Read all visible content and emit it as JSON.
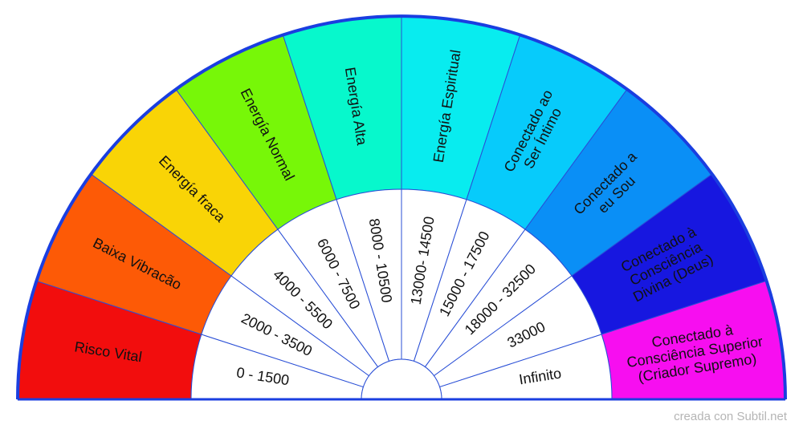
{
  "sectors": [
    {
      "label": [
        "Risco Vital"
      ],
      "range": "0 - 1500",
      "color": "#f20d0d"
    },
    {
      "label": [
        "Baixa Vibracão"
      ],
      "range": "2000 - 3500",
      "color": "#fd5a06"
    },
    {
      "label": [
        "Energía fraca"
      ],
      "range": "4000 - 5500",
      "color": "#f9d406"
    },
    {
      "label": [
        "Energía Normal"
      ],
      "range": "6000 - 7500",
      "color": "#77f708"
    },
    {
      "label": [
        "Energía Alta"
      ],
      "range": "8000 - 10500",
      "color": "#07f8cc"
    },
    {
      "label": [
        "Energía Espiritual"
      ],
      "range": "13000- 14500",
      "color": "#08ecef"
    },
    {
      "label": [
        "Conectado ao",
        "Ser Íntimo"
      ],
      "range": "15000 - 17500",
      "color": "#07cbfb"
    },
    {
      "label": [
        "Conectado a",
        "eu Sou"
      ],
      "range": "18000 - 32500",
      "color": "#0a8ff6"
    },
    {
      "label": [
        "Conectado à",
        "Consciência",
        "Divina (Deus)"
      ],
      "range": "33000",
      "color": "#1717e0"
    },
    {
      "label": [
        "Conectado à",
        "Consciência Superior",
        "(Criador Supremo)"
      ],
      "range": "Infinito",
      "color": "#f70ef0"
    }
  ],
  "footer": "creada con Subtil.net"
}
